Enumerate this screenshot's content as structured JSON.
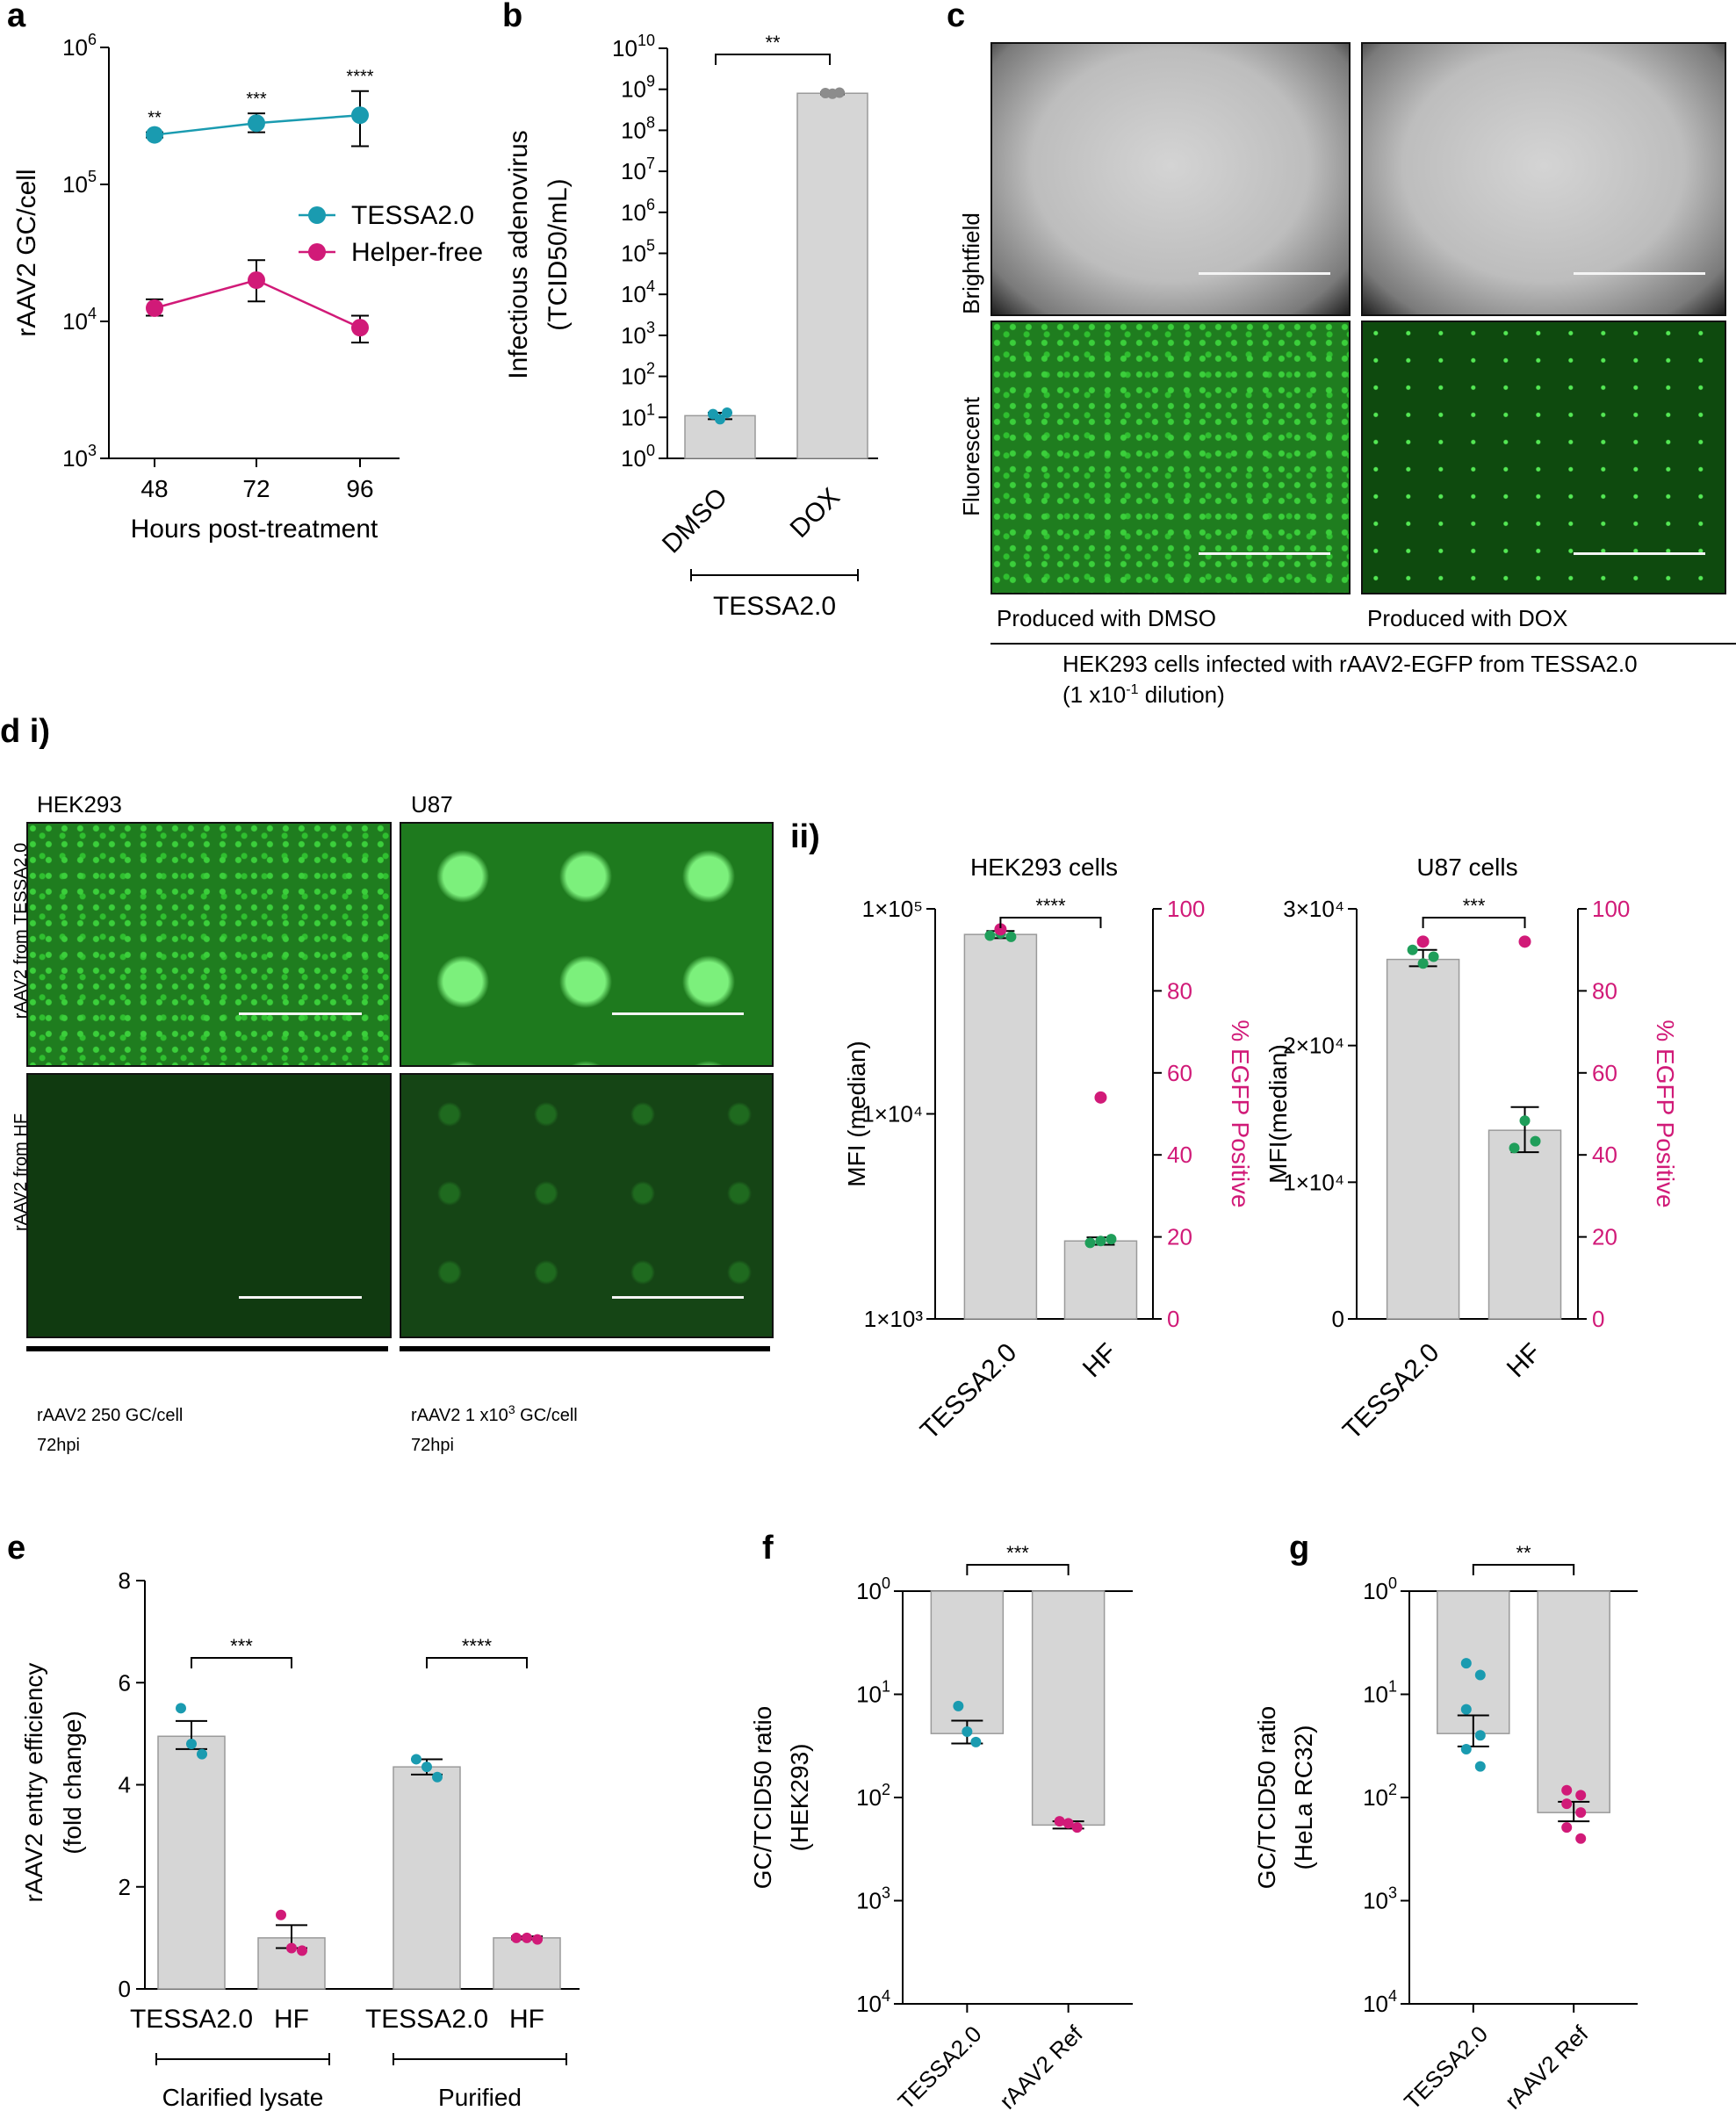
{
  "colors": {
    "teal": "#1a9bb0",
    "magenta": "#d11a78",
    "green": "#1f9e5a",
    "bar": "#d6d6d6",
    "grey_dot": "#8c8c8c"
  },
  "panel_labels": {
    "a": "a",
    "b": "b",
    "c": "c",
    "d": "d i)",
    "dii": "ii)",
    "e": "e",
    "f": "f",
    "g": "g"
  },
  "chart_data": [
    {
      "id": "a",
      "type": "line",
      "y_scale": "log",
      "ylim": [
        1000,
        1000000
      ],
      "yticks": [
        {
          "base": "10",
          "exp": "3"
        },
        {
          "base": "10",
          "exp": "4"
        },
        {
          "base": "10",
          "exp": "5"
        },
        {
          "base": "10",
          "exp": "6"
        }
      ],
      "ylabel": "rAAV2  GC/cell",
      "xlabel": "Hours post-treatment",
      "x": [
        "48",
        "72",
        "96"
      ],
      "series": [
        {
          "name": "TESSA2.0",
          "color": "#1a9bb0",
          "values": [
            230000,
            280000,
            320000
          ],
          "err_low": [
            220000,
            240000,
            190000
          ],
          "err_high": [
            240000,
            330000,
            480000
          ],
          "sig": [
            "**",
            "***",
            "****"
          ]
        },
        {
          "name": "Helper-free",
          "color": "#d11a78",
          "values": [
            12500,
            20000,
            9000
          ],
          "err_low": [
            11000,
            14000,
            7000
          ],
          "err_high": [
            14500,
            28000,
            11000
          ]
        }
      ],
      "legend": "right"
    },
    {
      "id": "b",
      "type": "bar",
      "y_scale": "log",
      "ylim": [
        1,
        10000000000
      ],
      "yticks": [
        {
          "base": "10",
          "exp": "0"
        },
        {
          "base": "10",
          "exp": "1"
        },
        {
          "base": "10",
          "exp": "2"
        },
        {
          "base": "10",
          "exp": "3"
        },
        {
          "base": "10",
          "exp": "4"
        },
        {
          "base": "10",
          "exp": "5"
        },
        {
          "base": "10",
          "exp": "6"
        },
        {
          "base": "10",
          "exp": "7"
        },
        {
          "base": "10",
          "exp": "8"
        },
        {
          "base": "10",
          "exp": "9"
        },
        {
          "base": "10",
          "exp": "10"
        }
      ],
      "ylabel": "Infectious adenovirus",
      "ylabel2": "(TCID50/mL)",
      "categories": [
        "DMSO",
        "DOX"
      ],
      "group": "TESSA2.0",
      "values": [
        11,
        800000000
      ],
      "err_low": [
        9,
        750000000
      ],
      "err_high": [
        13,
        850000000
      ],
      "points": [
        [
          12,
          9,
          13
        ],
        [
          810000000,
          780000000,
          830000000
        ]
      ],
      "point_colors": [
        "#1a9bb0",
        "#8c8c8c"
      ],
      "sig": "**"
    },
    {
      "id": "dii_hek",
      "type": "bar",
      "title": "HEK293 cells",
      "y_scale": "log",
      "ylim": [
        1000,
        100000
      ],
      "yticks": [
        "1×10³",
        "1×10⁴",
        "1×10⁵"
      ],
      "ylabel": "MFI (median)",
      "y2label": "% EGFP Positive",
      "y2lim": [
        0,
        100
      ],
      "y2ticks": [
        "0",
        "20",
        "40",
        "60",
        "80",
        "100"
      ],
      "categories": [
        "TESSA2.0",
        "HF"
      ],
      "values": [
        75000,
        2400
      ],
      "err_low": [
        72000,
        2300
      ],
      "err_high": [
        78000,
        2500
      ],
      "points": [
        [
          74000,
          76000,
          73000
        ],
        [
          2350,
          2400,
          2450
        ]
      ],
      "percent_positive": [
        95,
        54
      ],
      "sig": "****"
    },
    {
      "id": "dii_u87",
      "type": "bar",
      "title": "U87 cells",
      "y_scale": "linear",
      "ylim": [
        0,
        30000
      ],
      "yticks": [
        "0",
        "1×10⁴",
        "2×10⁴",
        "3×10⁴"
      ],
      "ylabel": "MFI(median)",
      "y2label": "% EGFP Positive",
      "y2lim": [
        0,
        100
      ],
      "y2ticks": [
        "0",
        "20",
        "40",
        "60",
        "80",
        "100"
      ],
      "categories": [
        "TESSA2.0",
        "HF"
      ],
      "values": [
        26300,
        13800
      ],
      "err_low": [
        25800,
        12200
      ],
      "err_high": [
        27000,
        15500
      ],
      "points": [
        [
          27000,
          26000,
          26500
        ],
        [
          12500,
          14500,
          13000
        ]
      ],
      "percent_positive": [
        92,
        92
      ],
      "sig": "***"
    },
    {
      "id": "e",
      "type": "bar",
      "y_scale": "linear",
      "ylim": [
        0,
        8
      ],
      "yticks": [
        "0",
        "2",
        "4",
        "6",
        "8"
      ],
      "ylabel": "rAAV2 entry efficiency",
      "ylabel2": "(fold change)",
      "categories": [
        "TESSA2.0",
        "HF",
        "TESSA2.0",
        "HF"
      ],
      "groups": [
        "Clarified lysate",
        "Purified"
      ],
      "values": [
        4.95,
        1.0,
        4.35,
        1.0
      ],
      "err_low": [
        4.7,
        0.8,
        4.2,
        0.97
      ],
      "err_high": [
        5.25,
        1.25,
        4.5,
        1.03
      ],
      "points": [
        [
          5.5,
          4.8,
          4.6
        ],
        [
          1.45,
          0.8,
          0.75
        ],
        [
          4.5,
          4.35,
          4.15
        ],
        [
          1.0,
          1.0,
          0.97
        ]
      ],
      "point_colors": [
        "#1a9bb0",
        "#d11a78",
        "#1a9bb0",
        "#d11a78"
      ],
      "sig": [
        "***",
        "****"
      ]
    },
    {
      "id": "f",
      "type": "bar",
      "y_scale": "log",
      "inverted": true,
      "ylim": [
        1,
        10000
      ],
      "yticks": [
        {
          "base": "10",
          "exp": "0"
        },
        {
          "base": "10",
          "exp": "1"
        },
        {
          "base": "10",
          "exp": "2"
        },
        {
          "base": "10",
          "exp": "3"
        },
        {
          "base": "10",
          "exp": "4"
        }
      ],
      "ylabel": "GC/TCID50 ratio",
      "ylabel2": "(HEK293)",
      "categories": [
        "TESSA2.0",
        "rAAV2 Ref"
      ],
      "values": [
        24,
        185
      ],
      "err_low": [
        18,
        170
      ],
      "err_high": [
        30,
        200
      ],
      "points": [
        [
          13,
          23,
          29
        ],
        [
          170,
          178,
          195
        ]
      ],
      "point_colors": [
        "#1a9bb0",
        "#d11a78"
      ],
      "sig": "***"
    },
    {
      "id": "g",
      "type": "bar",
      "y_scale": "log",
      "inverted": true,
      "ylim": [
        1,
        10000
      ],
      "yticks": [
        {
          "base": "10",
          "exp": "0"
        },
        {
          "base": "10",
          "exp": "1"
        },
        {
          "base": "10",
          "exp": "2"
        },
        {
          "base": "10",
          "exp": "3"
        },
        {
          "base": "10",
          "exp": "4"
        }
      ],
      "ylabel": "GC/TCID50 ratio",
      "ylabel2": "(HeLa RC32)",
      "categories": [
        "TESSA2.0",
        "rAAV2 Ref"
      ],
      "values": [
        24,
        140
      ],
      "err_low": [
        16,
        110
      ],
      "err_high": [
        32,
        170
      ],
      "points": [
        [
          5,
          6.5,
          14,
          25,
          34,
          50
        ],
        [
          85,
          95,
          115,
          140,
          195,
          250
        ]
      ],
      "point_colors": [
        "#1a9bb0",
        "#d11a78"
      ],
      "sig": "**"
    }
  ],
  "panel_c": {
    "row_labels": [
      "Brightfield",
      "Fluorescent"
    ],
    "col_captions": [
      "Produced with DMSO",
      "Produced with DOX"
    ],
    "caption_line1": "HEK293 cells infected with rAAV2-EGFP from TESSA2.0",
    "caption_line2_pre": "(1 x10",
    "caption_line2_sup": "-1",
    "caption_line2_post": " dilution)"
  },
  "panel_di": {
    "col_titles": [
      "HEK293",
      "U87"
    ],
    "row_labels": [
      "rAAV2 from TESSA2.0",
      "rAAV2 from HF"
    ],
    "col1_caption1": "rAAV2 250 GC/cell",
    "col1_caption2": "72hpi",
    "col2_caption1_pre": "rAAV2 1 x10",
    "col2_caption1_sup": "3",
    "col2_caption1_post": " GC/cell",
    "col2_caption2": "72hpi"
  }
}
